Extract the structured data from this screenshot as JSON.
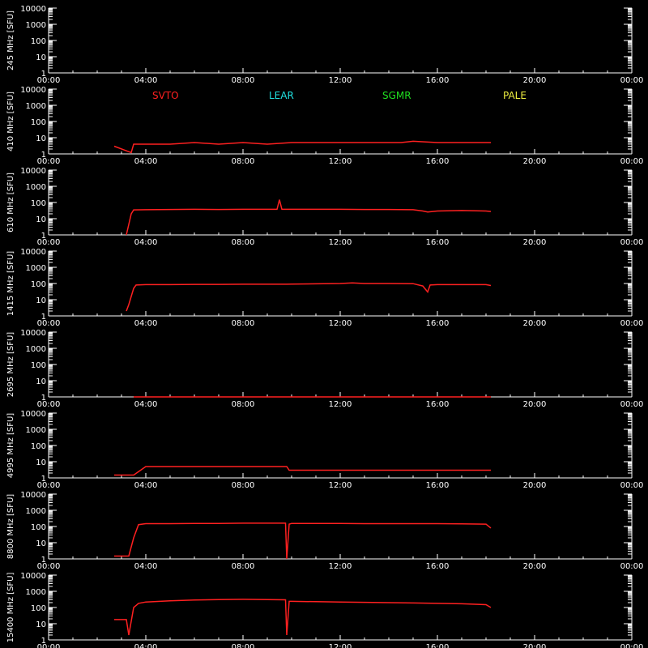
{
  "chart_data": {
    "type": "line",
    "x_ticks": [
      "00:00",
      "04:00",
      "08:00",
      "12:00",
      "16:00",
      "20:00",
      "00:00"
    ],
    "y_ticks": [
      "1",
      "10",
      "100",
      "1000",
      "10000"
    ],
    "y_scale": "log",
    "ylim": [
      1,
      10000
    ],
    "xlim_hours": [
      0,
      24
    ],
    "legend": [
      {
        "label": "SVTO",
        "color": "#ff2020"
      },
      {
        "label": "LEAR",
        "color": "#20e0e0"
      },
      {
        "label": "SGMR",
        "color": "#20e020"
      },
      {
        "label": "PALE",
        "color": "#f0f040"
      }
    ],
    "panels": [
      {
        "ylabel": "245 MHz [SFU]",
        "series": []
      },
      {
        "ylabel": "410 MHz [SFU]",
        "series": [
          {
            "name": "SVTO",
            "x": [
              2.7,
              3.4,
              3.5,
              4.0,
              5.0,
              6.0,
              7.0,
              8.0,
              9.0,
              10.0,
              11.0,
              12.0,
              13.0,
              14.0,
              14.5,
              15.0,
              16.0,
              17.0,
              18.2
            ],
            "y": [
              3,
              1.2,
              4,
              4,
              4,
              5,
              4,
              5,
              4,
              5,
              5,
              5,
              5,
              5,
              5,
              6,
              5,
              5,
              5
            ]
          }
        ]
      },
      {
        "ylabel": "610 MHz [SFU]",
        "series": [
          {
            "name": "SVTO",
            "x": [
              3.2,
              3.4,
              3.5,
              4.0,
              5.0,
              6.0,
              7.0,
              8.0,
              9.0,
              9.4,
              9.5,
              9.6,
              9.7,
              9.8,
              10.0,
              11.0,
              12.0,
              13.0,
              14.0,
              15.0,
              15.4,
              15.6,
              16.0,
              17.0,
              18.0,
              18.2
            ],
            "y": [
              1,
              20,
              35,
              36,
              37,
              38,
              37,
              38,
              38,
              38,
              150,
              38,
              38,
              38,
              38,
              38,
              38,
              37,
              37,
              36,
              30,
              26,
              30,
              32,
              30,
              28
            ]
          }
        ]
      },
      {
        "ylabel": "1415 MHz [SFU]",
        "series": [
          {
            "name": "SVTO",
            "x": [
              3.2,
              3.3,
              3.5,
              3.6,
              4.0,
              5.0,
              6.0,
              7.0,
              8.0,
              9.0,
              9.8,
              10.0,
              11.0,
              12.0,
              12.5,
              13.0,
              14.0,
              15.0,
              15.4,
              15.6,
              15.7,
              16.0,
              17.0,
              18.0,
              18.2
            ],
            "y": [
              2,
              5,
              50,
              80,
              85,
              85,
              88,
              88,
              90,
              90,
              90,
              92,
              95,
              100,
              110,
              100,
              100,
              98,
              70,
              30,
              80,
              85,
              85,
              85,
              75
            ]
          }
        ]
      },
      {
        "ylabel": "2695 MHz [SFU]",
        "series": [
          {
            "name": "SVTO",
            "x": [
              3.5,
              18.2
            ],
            "y": [
              1,
              1
            ]
          }
        ]
      },
      {
        "ylabel": "4995 MHz [SFU]",
        "series": [
          {
            "name": "SVTO",
            "x": [
              2.7,
              3.5,
              4.0,
              5.0,
              6.0,
              7.0,
              8.0,
              9.0,
              9.8,
              9.9,
              10.0,
              11.0,
              12.0,
              13.0,
              14.0,
              15.0,
              16.0,
              17.0,
              18.2
            ],
            "y": [
              1.5,
              1.5,
              5,
              5,
              5,
              5,
              5,
              5,
              5,
              3,
              3,
              3,
              3,
              3,
              3,
              3,
              3,
              3,
              3
            ]
          }
        ]
      },
      {
        "ylabel": "8800 MHz [SFU]",
        "series": [
          {
            "name": "SVTO",
            "x": [
              2.7,
              3.3,
              3.5,
              3.7,
              4.0,
              5.0,
              6.0,
              7.0,
              8.0,
              9.0,
              9.75,
              9.8,
              9.9,
              10.0,
              11.0,
              12.0,
              13.0,
              14.0,
              15.0,
              16.0,
              17.0,
              18.0,
              18.2
            ],
            "y": [
              1.5,
              1.5,
              20,
              130,
              150,
              150,
              155,
              155,
              160,
              160,
              160,
              1,
              140,
              155,
              155,
              155,
              150,
              150,
              150,
              150,
              145,
              140,
              80
            ]
          }
        ]
      },
      {
        "ylabel": "15400 MHz [SFU]",
        "series": [
          {
            "name": "SVTO",
            "x": [
              2.7,
              3.2,
              3.3,
              3.5,
              3.7,
              4.0,
              5.0,
              6.0,
              7.0,
              8.0,
              9.0,
              9.75,
              9.8,
              9.9,
              10.0,
              11.0,
              12.0,
              13.0,
              14.0,
              15.0,
              16.0,
              17.0,
              18.0,
              18.2
            ],
            "y": [
              18,
              18,
              2,
              100,
              180,
              220,
              260,
              290,
              310,
              320,
              310,
              300,
              2,
              240,
              240,
              230,
              220,
              210,
              200,
              190,
              180,
              170,
              150,
              100
            ]
          }
        ]
      }
    ]
  }
}
